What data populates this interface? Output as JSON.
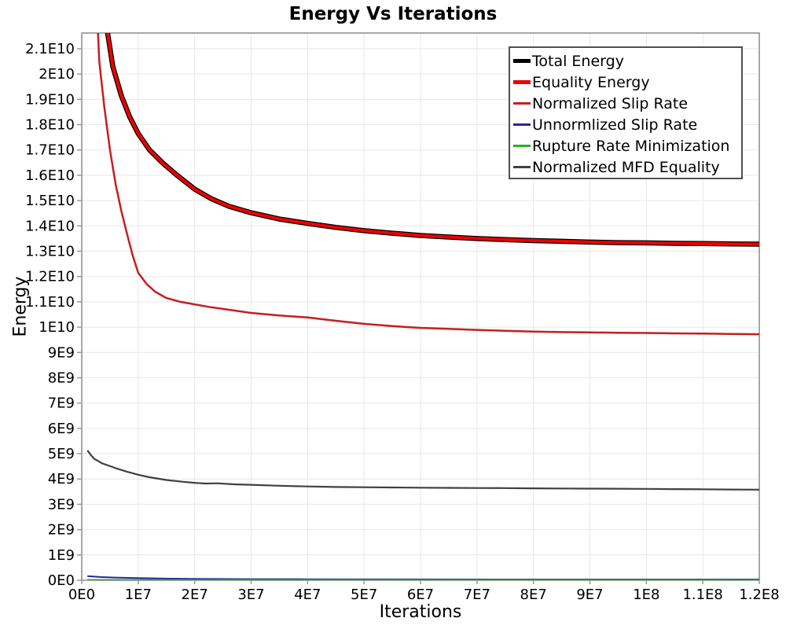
{
  "chart_data": {
    "type": "line",
    "title": "Energy Vs Iterations",
    "xlabel": "Iterations",
    "ylabel": "Energy",
    "xlim": [
      0,
      120000000
    ],
    "ylim": [
      0,
      21620000000
    ],
    "grid": true,
    "legend_position": "top-right-inside",
    "colors": {
      "background": "#ffffff",
      "grid": "#e7e7e7",
      "plot_border": "#8c8c8c",
      "tick": "#9a9a9a",
      "legend_border": "#4f4f4f",
      "text": "#000000"
    },
    "x_ticks": [
      {
        "v": 0,
        "label": "0E0"
      },
      {
        "v": 10000000,
        "label": "1E7"
      },
      {
        "v": 20000000,
        "label": "2E7"
      },
      {
        "v": 30000000,
        "label": "3E7"
      },
      {
        "v": 40000000,
        "label": "4E7"
      },
      {
        "v": 50000000,
        "label": "5E7"
      },
      {
        "v": 60000000,
        "label": "6E7"
      },
      {
        "v": 70000000,
        "label": "7E7"
      },
      {
        "v": 80000000,
        "label": "8E7"
      },
      {
        "v": 90000000,
        "label": "9E7"
      },
      {
        "v": 100000000,
        "label": "1E8"
      },
      {
        "v": 110000000,
        "label": "1.1E8"
      },
      {
        "v": 120000000,
        "label": "1.2E8"
      }
    ],
    "y_ticks": [
      {
        "v": 0,
        "label": "0E0"
      },
      {
        "v": 1000000000,
        "label": "1E9"
      },
      {
        "v": 2000000000,
        "label": "2E9"
      },
      {
        "v": 3000000000,
        "label": "3E9"
      },
      {
        "v": 4000000000,
        "label": "4E9"
      },
      {
        "v": 5000000000,
        "label": "5E9"
      },
      {
        "v": 6000000000,
        "label": "6E9"
      },
      {
        "v": 7000000000,
        "label": "7E9"
      },
      {
        "v": 8000000000,
        "label": "8E9"
      },
      {
        "v": 9000000000,
        "label": "9E9"
      },
      {
        "v": 10000000000,
        "label": "1E10"
      },
      {
        "v": 11000000000,
        "label": "1.1E10"
      },
      {
        "v": 12000000000,
        "label": "1.2E10"
      },
      {
        "v": 13000000000,
        "label": "1.3E10"
      },
      {
        "v": 14000000000,
        "label": "1.4E10"
      },
      {
        "v": 15000000000,
        "label": "1.5E10"
      },
      {
        "v": 16000000000,
        "label": "1.6E10"
      },
      {
        "v": 17000000000,
        "label": "1.7E10"
      },
      {
        "v": 18000000000,
        "label": "1.8E10"
      },
      {
        "v": 19000000000,
        "label": "1.9E10"
      },
      {
        "v": 20000000000,
        "label": "2E10"
      },
      {
        "v": 21000000000,
        "label": "2.1E10"
      }
    ],
    "series": [
      {
        "name": "Total Energy",
        "color": "#000000",
        "line_width": 6.5,
        "legend_line_height": 5,
        "points": [
          [
            3200000.0,
            30000000000.0
          ],
          [
            4000000.0,
            23400000000.0
          ],
          [
            4600000.0,
            21600000000.0
          ],
          [
            5500000.0,
            20300000000.0
          ],
          [
            7000000.0,
            19150000000.0
          ],
          [
            8500000.0,
            18300000000.0
          ],
          [
            10000000.0,
            17650000000.0
          ],
          [
            12000000.0,
            17000000000.0
          ],
          [
            14500000.0,
            16450000000.0
          ],
          [
            17000000.0,
            15980000000.0
          ],
          [
            20000000.0,
            15450000000.0
          ],
          [
            23000000.0,
            15070000000.0
          ],
          [
            26000000.0,
            14780000000.0
          ],
          [
            30000000.0,
            14520000000.0
          ],
          [
            35000000.0,
            14270000000.0
          ],
          [
            40000000.0,
            14100000000.0
          ],
          [
            45000000.0,
            13940000000.0
          ],
          [
            50000000.0,
            13810000000.0
          ],
          [
            55000000.0,
            13710000000.0
          ],
          [
            60000000.0,
            13620000000.0
          ],
          [
            65000000.0,
            13560000000.0
          ],
          [
            70000000.0,
            13500000000.0
          ],
          [
            75000000.0,
            13460000000.0
          ],
          [
            80000000.0,
            13420000000.0
          ],
          [
            85000000.0,
            13390000000.0
          ],
          [
            90000000.0,
            13360000000.0
          ],
          [
            95000000.0,
            13340000000.0
          ],
          [
            100000000.0,
            13330000000.0
          ],
          [
            105000000.0,
            13310000000.0
          ],
          [
            110000000.0,
            13300000000.0
          ],
          [
            115000000.0,
            13290000000.0
          ],
          [
            120000000.0,
            13280000000.0
          ]
        ]
      },
      {
        "name": "Equality Energy",
        "color": "#ee0000",
        "line_width": 4,
        "legend_line_height": 5,
        "points": [
          [
            3200000.0,
            30000000000.0
          ],
          [
            4000000.0,
            23400000000.0
          ],
          [
            4600000.0,
            21600000000.0
          ],
          [
            5500000.0,
            20300000000.0
          ],
          [
            7000000.0,
            19150000000.0
          ],
          [
            8500000.0,
            18300000000.0
          ],
          [
            10000000.0,
            17650000000.0
          ],
          [
            12000000.0,
            17000000000.0
          ],
          [
            14500000.0,
            16450000000.0
          ],
          [
            17000000.0,
            15980000000.0
          ],
          [
            20000000.0,
            15450000000.0
          ],
          [
            23000000.0,
            15070000000.0
          ],
          [
            26000000.0,
            14780000000.0
          ],
          [
            30000000.0,
            14520000000.0
          ],
          [
            35000000.0,
            14270000000.0
          ],
          [
            40000000.0,
            14100000000.0
          ],
          [
            45000000.0,
            13940000000.0
          ],
          [
            50000000.0,
            13810000000.0
          ],
          [
            55000000.0,
            13710000000.0
          ],
          [
            60000000.0,
            13620000000.0
          ],
          [
            65000000.0,
            13560000000.0
          ],
          [
            70000000.0,
            13500000000.0
          ],
          [
            75000000.0,
            13460000000.0
          ],
          [
            80000000.0,
            13420000000.0
          ],
          [
            85000000.0,
            13390000000.0
          ],
          [
            90000000.0,
            13360000000.0
          ],
          [
            95000000.0,
            13340000000.0
          ],
          [
            100000000.0,
            13330000000.0
          ],
          [
            105000000.0,
            13310000000.0
          ],
          [
            110000000.0,
            13300000000.0
          ],
          [
            115000000.0,
            13290000000.0
          ],
          [
            120000000.0,
            13280000000.0
          ]
        ]
      },
      {
        "name": "Normalized Slip Rate",
        "color": "#c41f1f",
        "line_width": 2.5,
        "legend_line_height": 3,
        "points": [
          [
            2000000.0,
            28000000000.0
          ],
          [
            2600000.0,
            23000000000.0
          ],
          [
            3100000.0,
            20500000000.0
          ],
          [
            4000000.0,
            18700000000.0
          ],
          [
            5000000.0,
            17000000000.0
          ],
          [
            6000000.0,
            15650000000.0
          ],
          [
            7000000.0,
            14600000000.0
          ],
          [
            8000000.0,
            13700000000.0
          ],
          [
            9000000.0,
            12850000000.0
          ],
          [
            10000000.0,
            12150000000.0
          ],
          [
            11500000.0,
            11700000000.0
          ],
          [
            13000000.0,
            11400000000.0
          ],
          [
            15000000.0,
            11150000000.0
          ],
          [
            17500000.0,
            11000000000.0
          ],
          [
            20000000.0,
            10900000000.0
          ],
          [
            22500000.0,
            10800000000.0
          ],
          [
            25000000.0,
            10720000000.0
          ],
          [
            30000000.0,
            10560000000.0
          ],
          [
            35000000.0,
            10460000000.0
          ],
          [
            40000000.0,
            10380000000.0
          ],
          [
            45000000.0,
            10250000000.0
          ],
          [
            50000000.0,
            10130000000.0
          ],
          [
            55000000.0,
            10040000000.0
          ],
          [
            60000000.0,
            9970000000.0
          ],
          [
            65000000.0,
            9930000000.0
          ],
          [
            70000000.0,
            9890000000.0
          ],
          [
            75000000.0,
            9855000000.0
          ],
          [
            80000000.0,
            9825000000.0
          ],
          [
            85000000.0,
            9805000000.0
          ],
          [
            90000000.0,
            9790000000.0
          ],
          [
            95000000.0,
            9780000000.0
          ],
          [
            100000000.0,
            9770000000.0
          ],
          [
            105000000.0,
            9755000000.0
          ],
          [
            110000000.0,
            9745000000.0
          ],
          [
            115000000.0,
            9730000000.0
          ],
          [
            120000000.0,
            9720000000.0
          ]
        ]
      },
      {
        "name": "Unnormlized Slip Rate",
        "color": "#26269e",
        "line_width": 2,
        "legend_line_height": 3,
        "points": [
          [
            1000000.0,
            160000000.0
          ],
          [
            3000000.0,
            130000000.0
          ],
          [
            6000000.0,
            105000000.0
          ],
          [
            10000000.0,
            85000000.0
          ],
          [
            15000000.0,
            65000000.0
          ],
          [
            20000000.0,
            55000000.0
          ],
          [
            30000000.0,
            45000000.0
          ],
          [
            40000000.0,
            40000000.0
          ],
          [
            60000000.0,
            35000000.0
          ],
          [
            80000000.0,
            32000000.0
          ],
          [
            100000000.0,
            31000000.0
          ],
          [
            120000000.0,
            30000000.0
          ]
        ]
      },
      {
        "name": "Rupture Rate Minimization",
        "color": "#25b225",
        "line_width": 2,
        "legend_line_height": 3,
        "points": [
          [
            1000000.0,
            15000000.0
          ],
          [
            20000000.0,
            12000000.0
          ],
          [
            60000000.0,
            11000000.0
          ],
          [
            120000000.0,
            10000000.0
          ]
        ]
      },
      {
        "name": "Normalized MFD Equality",
        "color": "#404040",
        "line_width": 2.2,
        "legend_line_height": 3,
        "points": [
          [
            1000000.0,
            5130000000.0
          ],
          [
            1600000.0,
            4950000000.0
          ],
          [
            2200000.0,
            4800000000.0
          ],
          [
            3000000.0,
            4700000000.0
          ],
          [
            3600000.0,
            4620000000.0
          ],
          [
            4500000.0,
            4550000000.0
          ],
          [
            6000000.0,
            4430000000.0
          ],
          [
            8000000.0,
            4290000000.0
          ],
          [
            10000000.0,
            4170000000.0
          ],
          [
            12000000.0,
            4070000000.0
          ],
          [
            15000000.0,
            3960000000.0
          ],
          [
            18000000.0,
            3890000000.0
          ],
          [
            20000000.0,
            3850000000.0
          ],
          [
            22000000.0,
            3820000000.0
          ],
          [
            24000000.0,
            3830000000.0
          ],
          [
            27000000.0,
            3790000000.0
          ],
          [
            30000000.0,
            3770000000.0
          ],
          [
            35000000.0,
            3735000000.0
          ],
          [
            40000000.0,
            3705000000.0
          ],
          [
            45000000.0,
            3685000000.0
          ],
          [
            50000000.0,
            3675000000.0
          ],
          [
            55000000.0,
            3665000000.0
          ],
          [
            60000000.0,
            3655000000.0
          ],
          [
            65000000.0,
            3650000000.0
          ],
          [
            70000000.0,
            3645000000.0
          ],
          [
            75000000.0,
            3640000000.0
          ],
          [
            80000000.0,
            3630000000.0
          ],
          [
            85000000.0,
            3625000000.0
          ],
          [
            90000000.0,
            3620000000.0
          ],
          [
            95000000.0,
            3615000000.0
          ],
          [
            100000000.0,
            3610000000.0
          ],
          [
            105000000.0,
            3600000000.0
          ],
          [
            110000000.0,
            3595000000.0
          ],
          [
            115000000.0,
            3585000000.0
          ],
          [
            120000000.0,
            3580000000.0
          ]
        ]
      }
    ]
  }
}
